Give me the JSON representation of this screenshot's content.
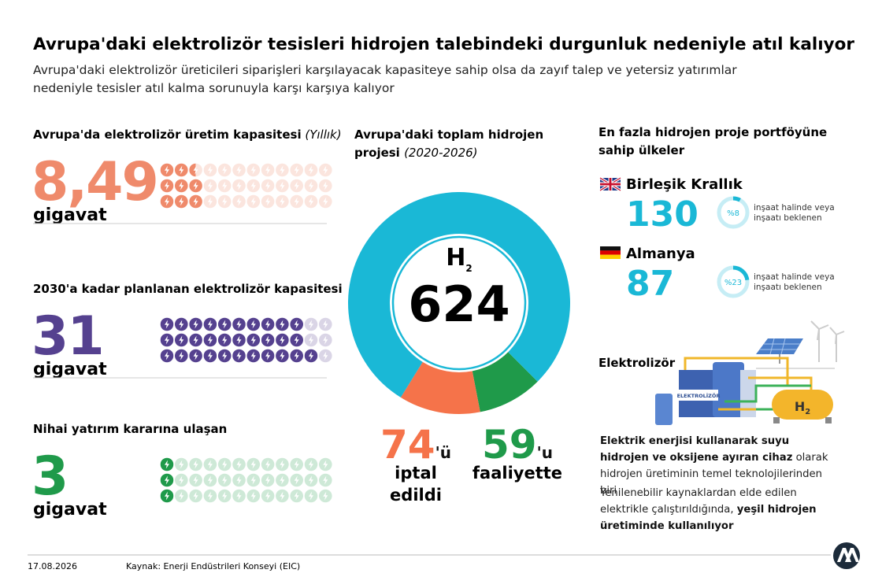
{
  "header": {
    "title": "Avrupa'daki elektrolizör tesisleri hidrojen talebindeki durgunluk nedeniyle atıl kalıyor",
    "subtitle": "Avrupa'daki elektrolizör üreticileri siparişleri karşılayacak kapasiteye sahip olsa da zayıf talep ve yetersiz yatırımlar nedeniyle tesisler atıl kalma sorunuyla karşı karşıya kalıyor"
  },
  "capacity": [
    {
      "label": "Avrupa'da elektrolizör üretim kapasitesi",
      "label_note": "(Yıllık)",
      "value": 8.49,
      "value_label": "8,49",
      "unit": "gigavat",
      "color": "#ef8a6b"
    },
    {
      "label": "2030'a kadar planlanan elektrolizör kapasitesi",
      "value": 31,
      "unit": "gigavat",
      "color": "#55418f"
    },
    {
      "label": "Nihai yatırım kararına ulaşan",
      "value": 3,
      "unit": "gigavat",
      "color": "#1f9a4a"
    }
  ],
  "projects": {
    "title": "Avrupa'daki toplam hidrojen",
    "title2": "projesi",
    "period": "(2020-2026)",
    "symbol": "H",
    "subscript": "2",
    "total": 624,
    "color": "#1ab8d6",
    "cancelled": {
      "value": 74,
      "suffix": "'ü",
      "label": "iptal",
      "label2": "edildi",
      "color": "#f5734a"
    },
    "active": {
      "value": 59,
      "suffix": "'u",
      "label": "faaliyette",
      "color": "#1f9a4a"
    }
  },
  "countries": {
    "title": "En fazla hidrojen proje portföyüne",
    "title2": "sahip ülkeler",
    "color": "#1ab8d6",
    "items": [
      {
        "name": "Birleşik Krallık",
        "projects": 130,
        "share": {
          "value": 8,
          "label": "%8"
        },
        "note": "inşaat halinde veya",
        "note2": "inşaatı beklenen"
      },
      {
        "name": "Almanya",
        "projects": 87,
        "share": {
          "value": 23,
          "label": "%23"
        },
        "note": "inşaat halinde veya",
        "note2": "inşaatı beklenen"
      }
    ]
  },
  "electrolyzer": {
    "title": "Elektrolizör",
    "tank_label": "ELEKTROLİZÖR",
    "h2": "H",
    "h2_sub": "2",
    "paragraphs": [
      [
        {
          "bold": true,
          "text": "Elektrik enerjisi kullanarak suyu hidrojen ve oksijene ayıran cihaz"
        },
        {
          "bold": false,
          "text": " olarak hidrojen üretiminin temel teknolojilerinden biri"
        }
      ],
      [
        {
          "bold": false,
          "text": "Yenilenebilir kaynaklardan elde edilen elektrikle çalıştırıldığında, "
        },
        {
          "bold": true,
          "text": "yeşil hidrojen üretiminde kullanılıyor"
        }
      ]
    ]
  },
  "footer": {
    "date": "17.08.2026",
    "source": "Kaynak: Enerji Endüstrileri Konseyi (EIC)"
  }
}
